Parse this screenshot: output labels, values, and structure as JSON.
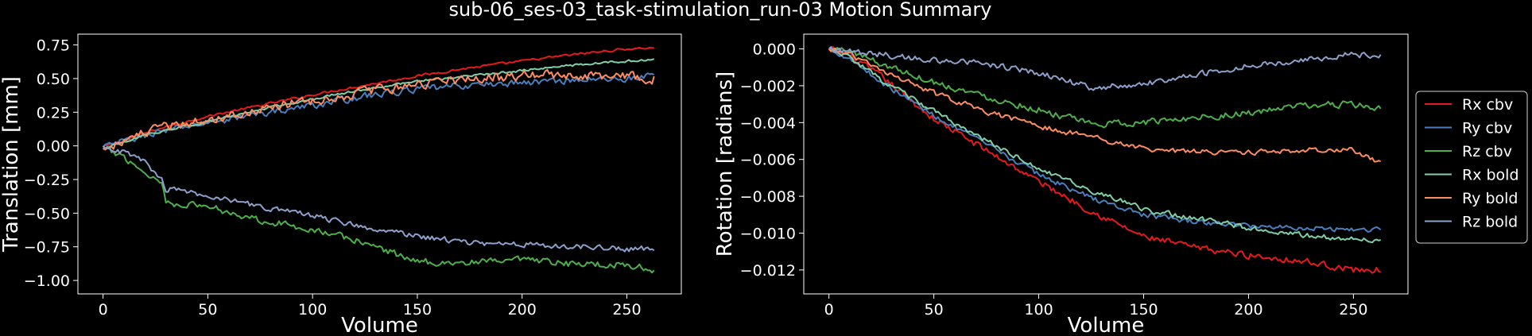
{
  "figure": {
    "title": "sub-06_ses-03_task-stimulation_run-03 Motion Summary"
  },
  "colors": {
    "Rx cbv": "#e41a1c",
    "Ry cbv": "#4a7fbd",
    "Rz cbv": "#4daf4a",
    "Rx bold": "#7fd0a8",
    "Ry bold": "#fc8d62",
    "Rz bold": "#8da0cb",
    "background": "#000000",
    "foreground": "#ffffff"
  },
  "legend": {
    "placement": "outside-right",
    "entries": [
      "Rx cbv",
      "Ry cbv",
      "Rz cbv",
      "Rx bold",
      "Ry bold",
      "Rz bold"
    ]
  },
  "chart_data": [
    {
      "type": "line",
      "xlabel": "Volume",
      "ylabel": "Translation [mm]",
      "xlim": [
        -12,
        276
      ],
      "ylim": [
        -1.1,
        0.83
      ],
      "xticks": [
        0,
        50,
        100,
        150,
        200,
        250
      ],
      "xtick_labels": [
        "0",
        "50",
        "100",
        "150",
        "200",
        "250"
      ],
      "yticks": [
        0.75,
        0.5,
        0.25,
        0.0,
        -0.25,
        -0.5,
        -0.75,
        -1.0
      ],
      "ytick_labels": [
        "0.75",
        "0.50",
        "0.25",
        "0.00",
        "−0.25",
        "−0.50",
        "−0.75",
        "−1.00"
      ],
      "x_range": [
        0,
        263
      ],
      "series": [
        {
          "name": "Rx cbv",
          "points": [
            [
              0,
              -0.01
            ],
            [
              25,
              0.12
            ],
            [
              50,
              0.22
            ],
            [
              75,
              0.3
            ],
            [
              100,
              0.38
            ],
            [
              125,
              0.45
            ],
            [
              150,
              0.52
            ],
            [
              175,
              0.58
            ],
            [
              200,
              0.63
            ],
            [
              225,
              0.68
            ],
            [
              250,
              0.72
            ],
            [
              263,
              0.73
            ]
          ],
          "noise": 0.012
        },
        {
          "name": "Ry cbv",
          "points": [
            [
              0,
              -0.01
            ],
            [
              25,
              0.1
            ],
            [
              50,
              0.17
            ],
            [
              75,
              0.24
            ],
            [
              100,
              0.3
            ],
            [
              125,
              0.37
            ],
            [
              150,
              0.42
            ],
            [
              175,
              0.45
            ],
            [
              200,
              0.47
            ],
            [
              225,
              0.49
            ],
            [
              250,
              0.5
            ],
            [
              263,
              0.52
            ]
          ],
          "noise": 0.035
        },
        {
          "name": "Rz cbv",
          "points": [
            [
              0,
              -0.02
            ],
            [
              10,
              -0.08
            ],
            [
              20,
              -0.2
            ],
            [
              28,
              -0.27
            ],
            [
              30,
              -0.42
            ],
            [
              50,
              -0.45
            ],
            [
              75,
              -0.55
            ],
            [
              100,
              -0.62
            ],
            [
              125,
              -0.72
            ],
            [
              150,
              -0.86
            ],
            [
              175,
              -0.87
            ],
            [
              200,
              -0.85
            ],
            [
              225,
              -0.88
            ],
            [
              250,
              -0.88
            ],
            [
              263,
              -0.93
            ]
          ],
          "noise": 0.035
        },
        {
          "name": "Rx bold",
          "points": [
            [
              0,
              -0.02
            ],
            [
              25,
              0.1
            ],
            [
              50,
              0.18
            ],
            [
              75,
              0.27
            ],
            [
              100,
              0.35
            ],
            [
              125,
              0.42
            ],
            [
              150,
              0.48
            ],
            [
              175,
              0.52
            ],
            [
              200,
              0.56
            ],
            [
              225,
              0.6
            ],
            [
              250,
              0.63
            ],
            [
              263,
              0.64
            ]
          ],
          "noise": 0.012
        },
        {
          "name": "Ry bold",
          "points": [
            [
              0,
              -0.02
            ],
            [
              25,
              0.12
            ],
            [
              50,
              0.2
            ],
            [
              75,
              0.27
            ],
            [
              100,
              0.34
            ],
            [
              125,
              0.4
            ],
            [
              150,
              0.46
            ],
            [
              175,
              0.5
            ],
            [
              200,
              0.52
            ],
            [
              225,
              0.53
            ],
            [
              250,
              0.52
            ],
            [
              263,
              0.5
            ]
          ],
          "noise": 0.05
        },
        {
          "name": "Rz bold",
          "points": [
            [
              0,
              0.0
            ],
            [
              10,
              -0.05
            ],
            [
              20,
              -0.12
            ],
            [
              28,
              -0.25
            ],
            [
              30,
              -0.32
            ],
            [
              50,
              -0.37
            ],
            [
              75,
              -0.45
            ],
            [
              100,
              -0.52
            ],
            [
              125,
              -0.6
            ],
            [
              150,
              -0.67
            ],
            [
              175,
              -0.72
            ],
            [
              200,
              -0.73
            ],
            [
              225,
              -0.75
            ],
            [
              250,
              -0.77
            ],
            [
              263,
              -0.76
            ]
          ],
          "noise": 0.03
        }
      ]
    },
    {
      "type": "line",
      "xlabel": "Volume",
      "ylabel": "Rotation [radians]",
      "xlim": [
        -12,
        276
      ],
      "ylim": [
        -0.0133,
        0.0008
      ],
      "xticks": [
        0,
        50,
        100,
        150,
        200,
        250
      ],
      "xtick_labels": [
        "0",
        "50",
        "100",
        "150",
        "200",
        "250"
      ],
      "yticks": [
        0.0,
        -0.002,
        -0.004,
        -0.006,
        -0.008,
        -0.01,
        -0.012
      ],
      "ytick_labels": [
        "0.000",
        "−0.002",
        "−0.004",
        "−0.006",
        "−0.008",
        "−0.010",
        "−0.012"
      ],
      "x_range": [
        0,
        263
      ],
      "series": [
        {
          "name": "Rx cbv",
          "points": [
            [
              0,
              0.0
            ],
            [
              10,
              -0.0004
            ],
            [
              25,
              -0.0015
            ],
            [
              50,
              -0.0038
            ],
            [
              75,
              -0.0055
            ],
            [
              100,
              -0.0072
            ],
            [
              125,
              -0.0088
            ],
            [
              150,
              -0.0102
            ],
            [
              175,
              -0.0108
            ],
            [
              200,
              -0.0112
            ],
            [
              225,
              -0.0115
            ],
            [
              250,
              -0.012
            ],
            [
              263,
              -0.012
            ]
          ],
          "noise": 0.00025
        },
        {
          "name": "Ry cbv",
          "points": [
            [
              0,
              0.0
            ],
            [
              10,
              -0.0005
            ],
            [
              25,
              -0.0018
            ],
            [
              50,
              -0.0036
            ],
            [
              75,
              -0.0052
            ],
            [
              100,
              -0.0068
            ],
            [
              125,
              -0.0081
            ],
            [
              150,
              -0.009
            ],
            [
              175,
              -0.0094
            ],
            [
              200,
              -0.0096
            ],
            [
              225,
              -0.0097
            ],
            [
              250,
              -0.0098
            ],
            [
              263,
              -0.0098
            ]
          ],
          "noise": 0.0002
        },
        {
          "name": "Rz cbv",
          "points": [
            [
              0,
              0.0
            ],
            [
              10,
              -0.0001
            ],
            [
              25,
              -0.0008
            ],
            [
              50,
              -0.0018
            ],
            [
              75,
              -0.0026
            ],
            [
              100,
              -0.0033
            ],
            [
              125,
              -0.0041
            ],
            [
              150,
              -0.004
            ],
            [
              175,
              -0.0037
            ],
            [
              200,
              -0.0035
            ],
            [
              225,
              -0.0031
            ],
            [
              250,
              -0.003
            ],
            [
              263,
              -0.0033
            ]
          ],
          "noise": 0.00025
        },
        {
          "name": "Rx bold",
          "points": [
            [
              0,
              0.0
            ],
            [
              10,
              -0.0005
            ],
            [
              25,
              -0.0017
            ],
            [
              50,
              -0.0034
            ],
            [
              75,
              -0.005
            ],
            [
              100,
              -0.0065
            ],
            [
              125,
              -0.0077
            ],
            [
              150,
              -0.0087
            ],
            [
              175,
              -0.0092
            ],
            [
              200,
              -0.0097
            ],
            [
              225,
              -0.0101
            ],
            [
              250,
              -0.0103
            ],
            [
              263,
              -0.0104
            ]
          ],
          "noise": 0.0002
        },
        {
          "name": "Ry bold",
          "points": [
            [
              0,
              0.0
            ],
            [
              10,
              -0.0003
            ],
            [
              25,
              -0.0012
            ],
            [
              50,
              -0.0024
            ],
            [
              75,
              -0.0034
            ],
            [
              100,
              -0.0042
            ],
            [
              125,
              -0.0048
            ],
            [
              150,
              -0.0054
            ],
            [
              175,
              -0.0056
            ],
            [
              200,
              -0.0056
            ],
            [
              225,
              -0.0055
            ],
            [
              250,
              -0.0055
            ],
            [
              263,
              -0.0062
            ]
          ],
          "noise": 0.0002
        },
        {
          "name": "Rz bold",
          "points": [
            [
              0,
              0.0
            ],
            [
              25,
              -0.0003
            ],
            [
              50,
              -0.0006
            ],
            [
              75,
              -0.0008
            ],
            [
              100,
              -0.0013
            ],
            [
              125,
              -0.0021
            ],
            [
              150,
              -0.0019
            ],
            [
              175,
              -0.0014
            ],
            [
              200,
              -0.0009
            ],
            [
              225,
              -0.0006
            ],
            [
              250,
              -0.0003
            ],
            [
              263,
              -0.0004
            ]
          ],
          "noise": 0.00022
        }
      ]
    }
  ]
}
